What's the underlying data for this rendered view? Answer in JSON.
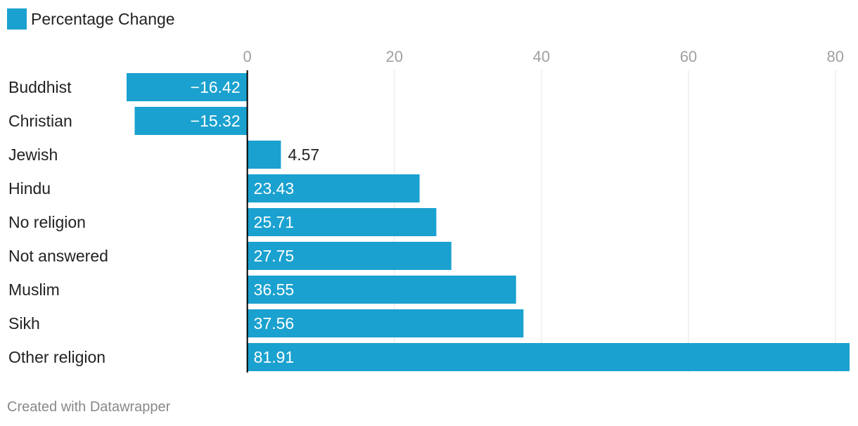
{
  "legend": {
    "label": "Percentage Change",
    "color": "#1aa1cf"
  },
  "footer": {
    "credit": "Created with Datawrapper"
  },
  "chart_data": {
    "type": "bar",
    "orientation": "horizontal",
    "categories": [
      "Buddhist",
      "Christian",
      "Jewish",
      "Hindu",
      "No religion",
      "Not answered",
      "Muslim",
      "Sikh",
      "Other religion"
    ],
    "series": [
      {
        "name": "Percentage Change",
        "values": [
          -16.42,
          -15.32,
          4.57,
          23.43,
          25.71,
          27.75,
          36.55,
          37.56,
          81.91
        ],
        "labels": [
          "−16.42",
          "−15.32",
          "4.57",
          "23.43",
          "25.71",
          "27.75",
          "36.55",
          "37.56",
          "81.91"
        ]
      }
    ],
    "x_ticks": [
      0,
      20,
      40,
      60,
      80
    ],
    "xlim": [
      -16.42,
      81.91
    ],
    "grid": true,
    "legend_position": "top-left",
    "colors": {
      "bar": "#1aa1cf",
      "grid": "#e5e5e5",
      "axis": "#000000",
      "tick_label": "#a0a0a0",
      "label_inside": "#ffffff",
      "label_outside": "#222222",
      "category_label": "#222222",
      "footer": "#888888"
    }
  }
}
